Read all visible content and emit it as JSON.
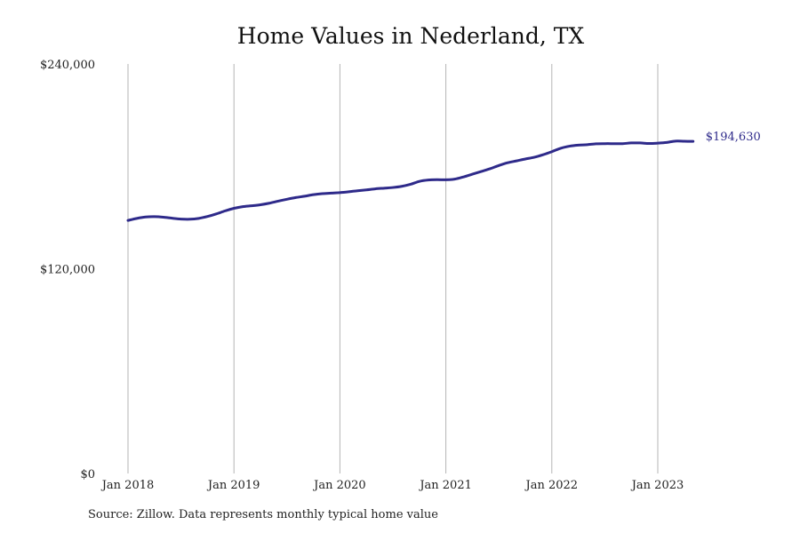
{
  "chart_data": {
    "type": "line",
    "title": "Home Values in Nederland, TX",
    "xlabel": "",
    "ylabel": "",
    "ylim": [
      0,
      240000
    ],
    "y_ticks": [
      {
        "value": 0,
        "label": "$0"
      },
      {
        "value": 120000,
        "label": "$120,000"
      },
      {
        "value": 240000,
        "label": "$240,000"
      }
    ],
    "x_ticks": [
      {
        "date": "2018-01",
        "label": "Jan 2018"
      },
      {
        "date": "2019-01",
        "label": "Jan 2019"
      },
      {
        "date": "2020-01",
        "label": "Jan 2020"
      },
      {
        "date": "2021-01",
        "label": "Jan 2021"
      },
      {
        "date": "2022-01",
        "label": "Jan 2022"
      },
      {
        "date": "2023-01",
        "label": "Jan 2023"
      }
    ],
    "grid": {
      "vertical": true,
      "horizontal": false
    },
    "line_color": "#2e2a8a",
    "end_label": "$194,630",
    "series": [
      {
        "x": [
          "2018-01",
          "2018-02",
          "2018-03",
          "2018-04",
          "2018-05",
          "2018-06",
          "2018-07",
          "2018-08",
          "2018-09",
          "2018-10",
          "2018-11",
          "2018-12",
          "2019-01",
          "2019-02",
          "2019-03",
          "2019-04",
          "2019-05",
          "2019-06",
          "2019-07",
          "2019-08",
          "2019-09",
          "2019-10",
          "2019-11",
          "2019-12",
          "2020-01",
          "2020-02",
          "2020-03",
          "2020-04",
          "2020-05",
          "2020-06",
          "2020-07",
          "2020-08",
          "2020-09",
          "2020-10",
          "2020-11",
          "2020-12",
          "2021-01",
          "2021-02",
          "2021-03",
          "2021-04",
          "2021-05",
          "2021-06",
          "2021-07",
          "2021-08",
          "2021-09",
          "2021-10",
          "2021-11",
          "2021-12",
          "2022-01",
          "2022-02",
          "2022-03",
          "2022-04",
          "2022-05",
          "2022-06",
          "2022-07",
          "2022-08",
          "2022-09",
          "2022-10",
          "2022-11",
          "2022-12",
          "2023-01",
          "2023-02",
          "2023-03",
          "2023-04",
          "2023-05"
        ],
        "values": [
          148300,
          149500,
          150300,
          150500,
          150200,
          149600,
          149100,
          149000,
          149500,
          150600,
          152100,
          153900,
          155400,
          156400,
          156900,
          157500,
          158400,
          159600,
          160700,
          161700,
          162500,
          163400,
          164000,
          164300,
          164600,
          165100,
          165700,
          166200,
          166800,
          167200,
          167600,
          168300,
          169500,
          171200,
          172000,
          172200,
          172100,
          172500,
          173800,
          175400,
          177000,
          178600,
          180500,
          182100,
          183200,
          184300,
          185300,
          186800,
          188600,
          190600,
          191800,
          192400,
          192700,
          193200,
          193300,
          193300,
          193300,
          193700,
          193700,
          193400,
          193600,
          194000,
          194800,
          194700,
          194630
        ]
      }
    ]
  },
  "source_note": "Source: Zillow. Data represents monthly typical home value"
}
